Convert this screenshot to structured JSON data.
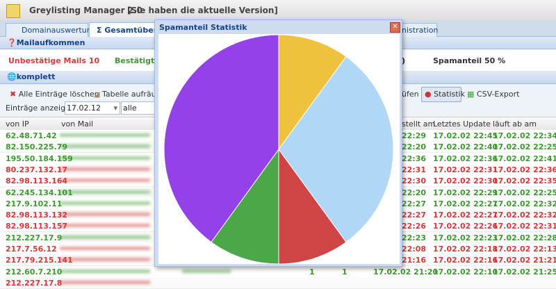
{
  "header": {
    "title": "Greylisting Manager 2.0",
    "version_note": "[Sie haben die aktuelle Version]"
  },
  "tabs": [
    "Domainauswertung",
    "Gesamtübersic",
    "nistration"
  ],
  "mail_panel": {
    "title": "Mailaufkommen",
    "unconfirmed": "Unbestätige Mails 10",
    "confirmed": "Bestätigte M",
    "hidden_end": ")",
    "spam_share": "Spamanteil 50 %"
  },
  "list_panel": {
    "title": "komplett",
    "toolbar": [
      "Alle Einträge löschen",
      "Tabelle aufräume",
      "üfen",
      "Statistik",
      "CSV-Export"
    ],
    "show_label": "Einträge anzeigen:",
    "date_filter": "17.02.12",
    "scope_filter": "alle"
  },
  "table": {
    "columns": [
      "von IP",
      "von Mail",
      "stellt am",
      "Letztes Update",
      "läuft ab am"
    ],
    "rows": [
      {
        "color": "#3c9a2e",
        "cells": [
          "62.48.71.42",
          "22:29",
          "17.02.02 22:45",
          "17.02.02 22:34"
        ]
      },
      {
        "color": "#3c9a2e",
        "cells": [
          "82.150.225.79",
          "22:20",
          "17.02.02 22:40",
          "17.02.02 22:25"
        ]
      },
      {
        "color": "#3c9a2e",
        "cells": [
          "195.50.184.159",
          "22:36",
          "17.02.02 22:36",
          "17.02.02 22:41"
        ]
      },
      {
        "color": "#d23a3a",
        "cells": [
          "80.237.132.17",
          "22:31",
          "17.02.02 22:31",
          "17.02.02 22:36"
        ]
      },
      {
        "color": "#d23a3a",
        "cells": [
          "82.98.113.164",
          "22:30",
          "17.02.02 22:30",
          "17.02.02 22:35"
        ]
      },
      {
        "color": "#3c9a2e",
        "cells": [
          "62.245.134.101",
          "22:20",
          "17.02.02 22:29",
          "17.02.02 22:25"
        ]
      },
      {
        "color": "#3c9a2e",
        "cells": [
          "217.9.102.11",
          "22:27",
          "17.02.02 22:27",
          "17.02.02 22:32"
        ]
      },
      {
        "color": "#d23a3a",
        "cells": [
          "82.98.113.132",
          "22:27",
          "17.02.02 22:27",
          "17.02.02 22:32"
        ]
      },
      {
        "color": "#d23a3a",
        "cells": [
          "82.98.113.157",
          "22:26",
          "17.02.02 22:26",
          "17.02.02 22:31"
        ]
      },
      {
        "color": "#3c9a2e",
        "cells": [
          "212.227.17.9",
          "22:23",
          "17.02.02 22:23",
          "17.02.02 22:28"
        ]
      },
      {
        "color": "#d23a3a",
        "cells": [
          "217.7.56.12",
          "22:08",
          "17.02.02 22:18",
          "17.02.02 22:13"
        ]
      },
      {
        "color": "#d23a3a",
        "cells": [
          "217.79.215.141",
          "21:16",
          "17.02.02 22:16",
          "17.02.02 21:21"
        ]
      },
      {
        "color": "#3c9a2e",
        "cells": [
          "212.60.7.210",
          "1",
          "1",
          "17.02.02 21:20",
          "17.02.02 22:10",
          "17.02.02 21:25"
        ]
      },
      {
        "color": "#d23a3a",
        "cells": [
          "212.227.17.8"
        ]
      }
    ]
  },
  "dialog": {
    "title": "Spamanteil Statistik",
    "chart": {
      "type": "pie",
      "values": [
        10,
        30,
        10,
        10,
        40
      ],
      "colors": [
        "#efc23e",
        "#b0d8f6",
        "#cf4545",
        "#4ba84a",
        "#9441e9"
      ]
    }
  }
}
